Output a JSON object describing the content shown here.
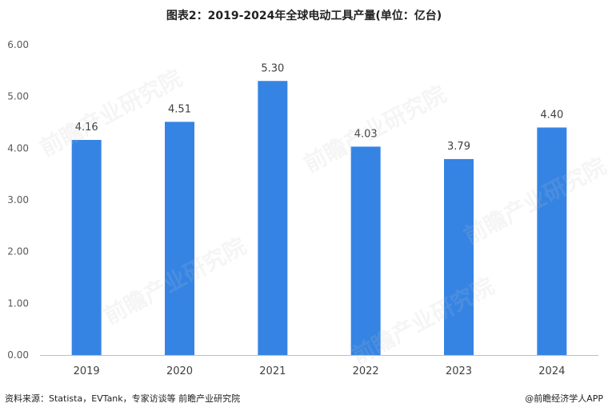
{
  "title": "图表2：2019-2024年全球电动工具产量(单位：亿台)",
  "chart_data": {
    "type": "bar",
    "title": "图表2：2019-2024年全球电动工具产量(单位：亿台)",
    "categories": [
      "2019",
      "2020",
      "2021",
      "2022",
      "2023",
      "2024"
    ],
    "values": [
      4.16,
      4.51,
      5.3,
      4.03,
      3.79,
      4.4
    ],
    "value_labels": [
      "4.16",
      "4.51",
      "5.30",
      "4.03",
      "3.79",
      "4.40"
    ],
    "yticks": [
      "0.00",
      "1.00",
      "2.00",
      "3.00",
      "4.00",
      "5.00",
      "6.00"
    ],
    "ylim": [
      0,
      6
    ],
    "xlabel": "",
    "ylabel": "",
    "grid": false,
    "bar_color": "#3584e4"
  },
  "footer": {
    "source": "资料来源：Statista，EVTank，专家访谈等 前瞻产业研究院",
    "brand": "@前瞻经济学人APP"
  },
  "watermark": "前瞻产业研究院"
}
